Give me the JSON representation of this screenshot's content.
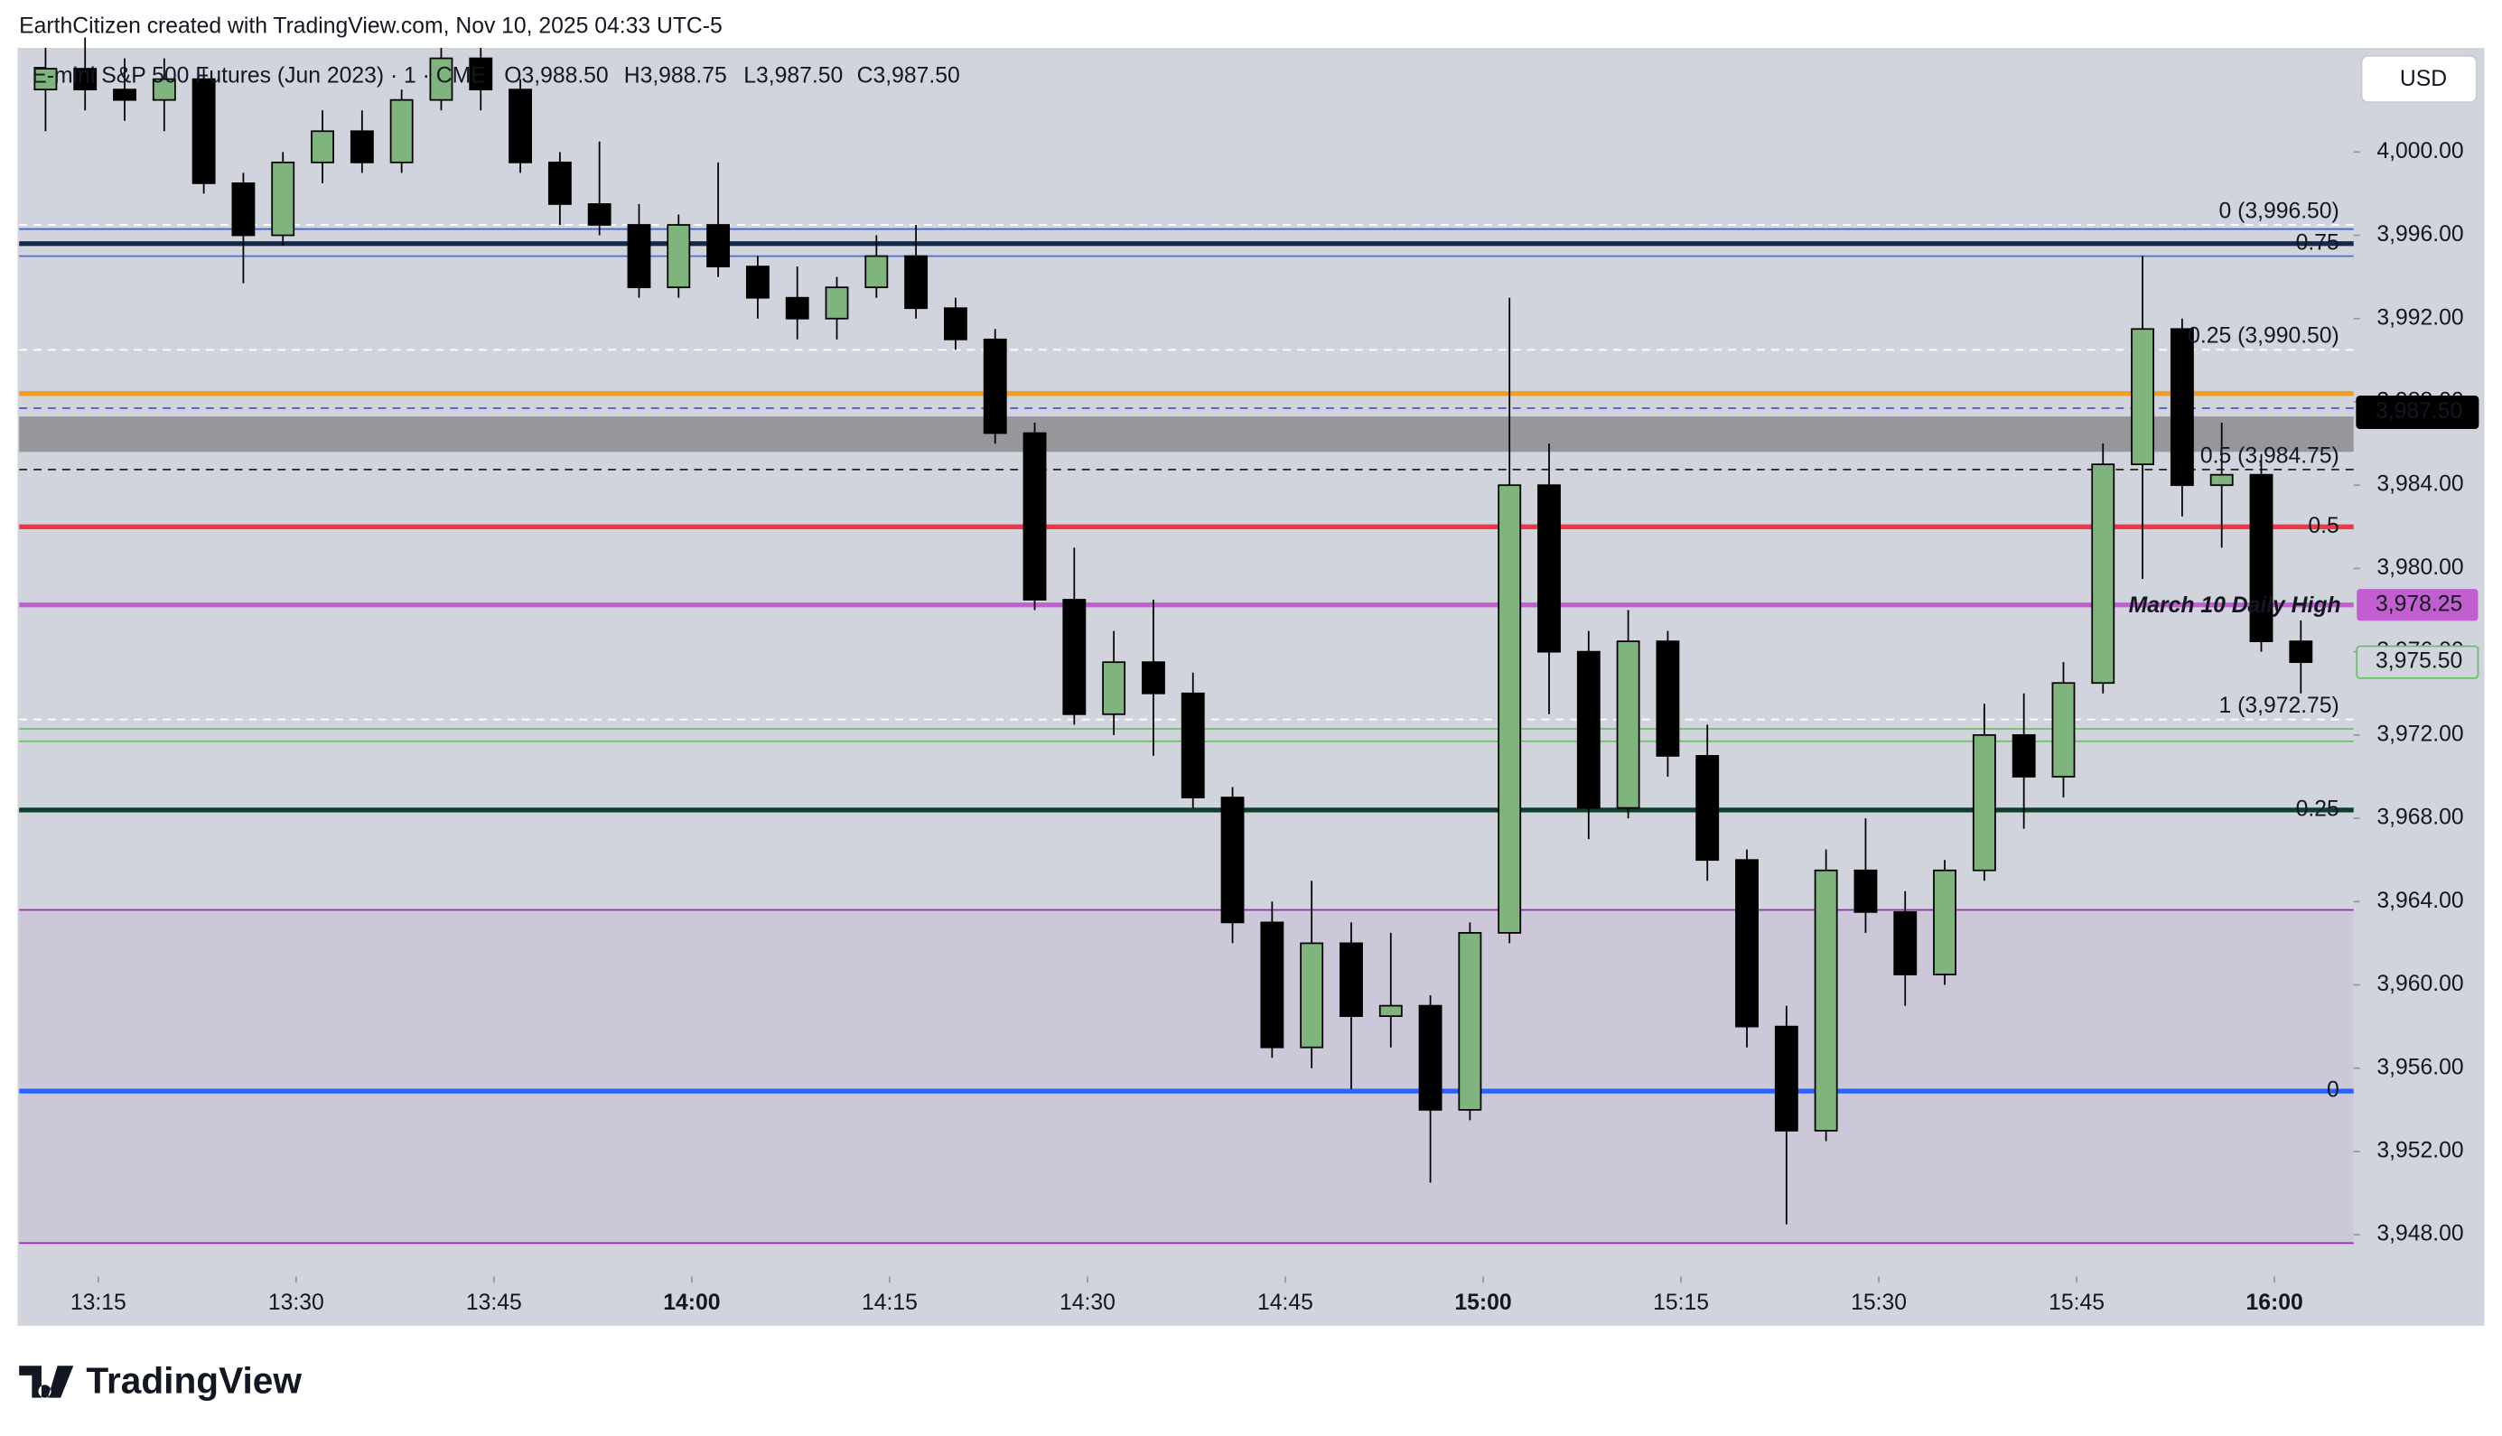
{
  "header": {
    "credit": "EarthCitizen created with TradingView.com, Nov 10, 2025 04:33 UTC-5",
    "logo": "TradingView"
  },
  "chart_data": {
    "type": "candlestick",
    "title": "E-mini S&P 500 Futures (Jun 2023) · 1 · CME",
    "ohlc": {
      "open": "O3,988.50",
      "high": "H3,988.75",
      "low": "L3,987.50",
      "close": "C3,987.50"
    },
    "currency": "USD",
    "up_color": "#7fb47f",
    "down_color": "#000000",
    "background": "#d1d4dc",
    "grid": false,
    "x": [
      791,
      794,
      797,
      800,
      803,
      806,
      809,
      812,
      815,
      818,
      821,
      824,
      827,
      830,
      833,
      836,
      839,
      842,
      845,
      848,
      851,
      854,
      857,
      860,
      863,
      866,
      869,
      872,
      875,
      878,
      881,
      884,
      887,
      890,
      893,
      896,
      899,
      902,
      905,
      908,
      911,
      914,
      917,
      920,
      923,
      926,
      929,
      932,
      935,
      938,
      941,
      944,
      947,
      950,
      953,
      956,
      959,
      962
    ],
    "open": [
      4003,
      4004,
      4003,
      4002.5,
      4003.5,
      3998.5,
      3996,
      3999.5,
      4001,
      3999.5,
      4002.5,
      4004.5,
      4003,
      3999.5,
      3997.5,
      3996.5,
      3993.5,
      3996.5,
      3994.5,
      3993,
      3992,
      3993.5,
      3995,
      3992.5,
      3991,
      3986.5,
      3978.5,
      3973,
      3975.5,
      3974,
      3969,
      3963,
      3957,
      3962,
      3958.5,
      3959,
      3954,
      3962.5,
      3984,
      3976,
      3968.5,
      3976.5,
      3971,
      3966,
      3958,
      3953,
      3965.5,
      3963.5,
      3960.5,
      3965.5,
      3972,
      3970,
      3974.5,
      3985,
      3991.5,
      3984,
      3984.5,
      3976.5
    ],
    "high": [
      4005,
      4005.5,
      4004.5,
      4004.5,
      4004,
      3999,
      4000,
      4002,
      4002,
      4003,
      4005,
      4005,
      4003.5,
      4000,
      4000.5,
      3997.5,
      3997,
      3999.5,
      3995,
      3994.5,
      3994,
      3996,
      3996.5,
      3993,
      3991.5,
      3987,
      3981,
      3977,
      3978.5,
      3975,
      3969.5,
      3964,
      3965,
      3963,
      3962.5,
      3959.5,
      3963,
      3993,
      3986,
      3977,
      3978,
      3977,
      3972.5,
      3966.5,
      3959,
      3966.5,
      3968,
      3964.5,
      3966,
      3973.5,
      3974,
      3975.5,
      3986,
      3995,
      3992,
      3987,
      3985.5,
      3977.5
    ],
    "low": [
      4001,
      4002,
      4001.5,
      4001,
      3998,
      3993.7,
      3995.5,
      3998.5,
      3999,
      3999,
      4002,
      4002,
      3999,
      3996.5,
      3996,
      3993,
      3993,
      3994,
      3992,
      3991,
      3991,
      3993,
      3992,
      3990.5,
      3986,
      3978,
      3972.5,
      3972,
      3971,
      3968.5,
      3962,
      3956.5,
      3956,
      3955,
      3957,
      3950.5,
      3953.5,
      3962,
      3973,
      3967,
      3968,
      3970,
      3965,
      3957,
      3948.5,
      3952.5,
      3962.5,
      3959,
      3960,
      3965,
      3967.5,
      3969,
      3974,
      3979.5,
      3982.5,
      3981,
      3976,
      3974
    ],
    "close": [
      4004,
      4003,
      4002.5,
      4003.5,
      3998.5,
      3996,
      3999.5,
      4001,
      3999.5,
      4002.5,
      4004.5,
      4003,
      3999.5,
      3997.5,
      3996.5,
      3993.5,
      3996.5,
      3994.5,
      3993,
      3992,
      3993.5,
      3995,
      3992.5,
      3991,
      3986.5,
      3978.5,
      3973,
      3975.5,
      3974,
      3969,
      3963,
      3957,
      3962,
      3958.5,
      3959,
      3954,
      3962.5,
      3984,
      3976,
      3968.5,
      3976.5,
      3971,
      3966,
      3958,
      3953,
      3965.5,
      3963.5,
      3960.5,
      3965.5,
      3972,
      3970,
      3974.5,
      3985,
      3991.5,
      3984,
      3984.5,
      3976.5,
      3975.5
    ],
    "xlim": [
      789,
      966
    ],
    "xticks": [
      {
        "value": 795,
        "label": "13:15"
      },
      {
        "value": 810,
        "label": "13:30"
      },
      {
        "value": 825,
        "label": "13:45"
      },
      {
        "value": 840,
        "label": "14:00",
        "bold": true
      },
      {
        "value": 855,
        "label": "14:15"
      },
      {
        "value": 870,
        "label": "14:30"
      },
      {
        "value": 885,
        "label": "14:45"
      },
      {
        "value": 900,
        "label": "15:00",
        "bold": true
      },
      {
        "value": 915,
        "label": "15:15"
      },
      {
        "value": 930,
        "label": "15:30"
      },
      {
        "value": 945,
        "label": "15:45"
      },
      {
        "value": 960,
        "label": "16:00",
        "bold": true
      }
    ],
    "ylim": [
      3946,
      4005
    ],
    "yticks": [
      {
        "value": 3948,
        "label": "3,948.00"
      },
      {
        "value": 3952,
        "label": "3,952.00"
      },
      {
        "value": 3956,
        "label": "3,956.00"
      },
      {
        "value": 3960,
        "label": "3,960.00"
      },
      {
        "value": 3964,
        "label": "3,964.00"
      },
      {
        "value": 3968,
        "label": "3,968.00"
      },
      {
        "value": 3972,
        "label": "3,972.00"
      },
      {
        "value": 3976,
        "label": "3,976.00"
      },
      {
        "value": 3980,
        "label": "3,980.00"
      },
      {
        "value": 3984,
        "label": "3,984.00"
      },
      {
        "value": 3988,
        "label": "3,988.00"
      },
      {
        "value": 3992,
        "label": "3,992.00"
      },
      {
        "value": 3996,
        "label": "3,996.00"
      },
      {
        "value": 4000,
        "label": "4,000.00"
      }
    ],
    "zones": [
      {
        "low": 3985.6,
        "high": 3987.3,
        "color": "#8c8c8f"
      },
      {
        "low": 3947.6,
        "high": 3963.6,
        "color": "#cbc6d9"
      }
    ],
    "levels": [
      {
        "value": 3996.5,
        "color": "#ffffff",
        "width": 1,
        "dash": true,
        "label": "0 (3,996.50)",
        "label_color": "#ffffff"
      },
      {
        "value": 3996.3,
        "color": "#3b5bdb",
        "width": 1
      },
      {
        "value": 3995.6,
        "color": "#132a4a",
        "width": 3,
        "label": "0.75",
        "label_color": "#1e3a5f"
      },
      {
        "value": 3995,
        "color": "#4a6fd8",
        "width": 1
      },
      {
        "value": 3990.5,
        "color": "#ffffff",
        "width": 1,
        "dash": true,
        "label": "0.25 (3,990.50)",
        "label_color": "#ffffff"
      },
      {
        "value": 3988.4,
        "color": "#f59c1a",
        "width": 3
      },
      {
        "value": 3987.7,
        "color": "#3b5bdb",
        "width": 1,
        "dash": true
      },
      {
        "value": 3984.75,
        "color": "#222222",
        "width": 1,
        "dash": true,
        "label": "0.5 (3,984.75)",
        "label_color": "#222222"
      },
      {
        "value": 3982,
        "color": "#f23645",
        "width": 3,
        "label": "0.5",
        "label_color": "#f23645"
      },
      {
        "value": 3978.25,
        "color": "#c15fd0",
        "width": 3,
        "annotation": "March 10 Daily High",
        "tag": "3,978.25"
      },
      {
        "value": 3972.75,
        "color": "#ffffff",
        "width": 1,
        "dash": true,
        "label": "1 (3,972.75)",
        "label_color": "#ffffff"
      },
      {
        "value": 3972.3,
        "color": "#6bbf6b",
        "width": 1
      },
      {
        "value": 3971.7,
        "color": "#6bbf6b",
        "width": 1
      },
      {
        "value": 3968.4,
        "color": "#0f3d2e",
        "width": 3,
        "label": "0.25",
        "label_color": "#0f3d2e"
      },
      {
        "value": 3963.6,
        "color": "#9c27b0",
        "width": 1
      },
      {
        "value": 3954.9,
        "color": "#2962ff",
        "width": 3,
        "label": "0",
        "label_color": "#2962ff"
      },
      {
        "value": 3947.6,
        "color": "#9c27b0",
        "width": 1
      }
    ],
    "price_tags": [
      {
        "value": 3987.5,
        "label": "3,987.50",
        "bg": "#000000",
        "fg": "#ffffff",
        "border": "#000000"
      },
      {
        "value": 3975.5,
        "label": "3,975.50",
        "bg": "#d1d4dc",
        "fg": "#6bbf6b",
        "border": "#6bbf6b"
      }
    ]
  }
}
